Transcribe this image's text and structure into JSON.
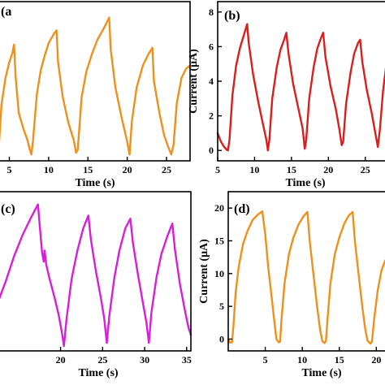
{
  "chart_data": [
    {
      "panel": "(a",
      "type": "line",
      "color": "#f0901c",
      "xlabel": "Time (s)",
      "ylabel": "",
      "xlim": [
        3.5,
        28
      ],
      "ylim": [
        0,
        1
      ],
      "xticks": [
        5,
        10,
        15,
        20,
        25
      ],
      "yticks": [],
      "points": [
        [
          3.5,
          0.05
        ],
        [
          3.7,
          0.12
        ],
        [
          4.0,
          0.35
        ],
        [
          4.5,
          0.52
        ],
        [
          5.0,
          0.62
        ],
        [
          5.4,
          0.68
        ],
        [
          5.6,
          0.73
        ],
        [
          5.8,
          0.53
        ],
        [
          6.2,
          0.3
        ],
        [
          6.8,
          0.2
        ],
        [
          7.3,
          0.13
        ],
        [
          7.6,
          0.07
        ],
        [
          7.8,
          0.04
        ],
        [
          8.0,
          0.12
        ],
        [
          8.5,
          0.42
        ],
        [
          9.0,
          0.57
        ],
        [
          9.5,
          0.66
        ],
        [
          10.0,
          0.74
        ],
        [
          10.7,
          0.8
        ],
        [
          11.0,
          0.82
        ],
        [
          11.2,
          0.62
        ],
        [
          11.8,
          0.4
        ],
        [
          12.5,
          0.24
        ],
        [
          13.2,
          0.13
        ],
        [
          13.5,
          0.05
        ],
        [
          13.7,
          0.07
        ],
        [
          14.2,
          0.4
        ],
        [
          14.8,
          0.56
        ],
        [
          15.5,
          0.67
        ],
        [
          16.2,
          0.76
        ],
        [
          17.0,
          0.83
        ],
        [
          17.7,
          0.9
        ],
        [
          17.9,
          0.7
        ],
        [
          18.5,
          0.46
        ],
        [
          19.3,
          0.27
        ],
        [
          20.0,
          0.12
        ],
        [
          20.3,
          0.04
        ],
        [
          20.6,
          0.25
        ],
        [
          21.2,
          0.46
        ],
        [
          22.0,
          0.6
        ],
        [
          22.7,
          0.67
        ],
        [
          23.2,
          0.71
        ],
        [
          23.4,
          0.5
        ],
        [
          24.1,
          0.3
        ],
        [
          24.7,
          0.16
        ],
        [
          25.2,
          0.09
        ],
        [
          25.6,
          0.04
        ],
        [
          25.9,
          0.1
        ],
        [
          26.3,
          0.36
        ],
        [
          26.9,
          0.52
        ],
        [
          27.5,
          0.58
        ],
        [
          28.0,
          0.6
        ]
      ]
    },
    {
      "panel": "(b)",
      "type": "line",
      "color": "#d91e1e",
      "xlabel": "Time (s)",
      "ylabel": "Current (μA)",
      "xlim": [
        5,
        28
      ],
      "ylim": [
        -0.6,
        8.6
      ],
      "xticks": [
        5,
        10,
        15,
        20,
        25
      ],
      "yticks": [
        0,
        2,
        4,
        6,
        8
      ],
      "points": [
        [
          5.0,
          1.0
        ],
        [
          5.4,
          0.55
        ],
        [
          5.8,
          0.25
        ],
        [
          6.2,
          0.05
        ],
        [
          6.4,
          0.0
        ],
        [
          6.6,
          0.6
        ],
        [
          7.0,
          3.2
        ],
        [
          7.5,
          4.9
        ],
        [
          8.0,
          5.9
        ],
        [
          8.5,
          6.6
        ],
        [
          9.0,
          7.3
        ],
        [
          9.2,
          6.2
        ],
        [
          9.8,
          4.4
        ],
        [
          10.5,
          2.8
        ],
        [
          11.2,
          1.4
        ],
        [
          11.6,
          0.6
        ],
        [
          11.8,
          0.0
        ],
        [
          12.0,
          0.6
        ],
        [
          12.4,
          3.0
        ],
        [
          13.0,
          4.8
        ],
        [
          13.5,
          5.8
        ],
        [
          14.0,
          6.4
        ],
        [
          14.3,
          6.8
        ],
        [
          14.6,
          5.6
        ],
        [
          15.2,
          3.9
        ],
        [
          15.9,
          2.5
        ],
        [
          16.5,
          1.3
        ],
        [
          16.8,
          0.1
        ],
        [
          17.0,
          0.6
        ],
        [
          17.4,
          3.0
        ],
        [
          18.0,
          4.8
        ],
        [
          18.5,
          5.9
        ],
        [
          19.0,
          6.5
        ],
        [
          19.3,
          6.8
        ],
        [
          19.6,
          5.4
        ],
        [
          20.3,
          3.7
        ],
        [
          21.0,
          2.4
        ],
        [
          21.5,
          1.2
        ],
        [
          21.8,
          0.3
        ],
        [
          22.0,
          0.5
        ],
        [
          22.4,
          2.7
        ],
        [
          23.0,
          4.5
        ],
        [
          23.5,
          5.6
        ],
        [
          24.0,
          6.2
        ],
        [
          24.3,
          6.4
        ],
        [
          24.6,
          5.1
        ],
        [
          25.2,
          3.5
        ],
        [
          25.9,
          2.1
        ],
        [
          26.4,
          0.9
        ],
        [
          26.7,
          0.2
        ],
        [
          27.0,
          1.3
        ],
        [
          27.4,
          3.4
        ],
        [
          27.8,
          4.8
        ],
        [
          28.0,
          5.5
        ]
      ]
    },
    {
      "panel": "(c)",
      "type": "line",
      "color": "#d81ed8",
      "xlabel": "Time (s)",
      "ylabel": "",
      "xlim": [
        12.5,
        35.5
      ],
      "ylim": [
        0,
        1
      ],
      "xticks": [
        20,
        25,
        30,
        35
      ],
      "yticks": [],
      "points": [
        [
          12.5,
          0.3
        ],
        [
          13.5,
          0.44
        ],
        [
          14.5,
          0.6
        ],
        [
          15.5,
          0.73
        ],
        [
          16.5,
          0.84
        ],
        [
          17.3,
          0.92
        ],
        [
          17.5,
          0.8
        ],
        [
          17.8,
          0.62
        ],
        [
          18.0,
          0.56
        ],
        [
          18.1,
          0.63
        ],
        [
          18.3,
          0.54
        ],
        [
          18.7,
          0.45
        ],
        [
          19.3,
          0.33
        ],
        [
          19.8,
          0.22
        ],
        [
          20.2,
          0.1
        ],
        [
          20.4,
          0.03
        ],
        [
          20.7,
          0.2
        ],
        [
          21.3,
          0.45
        ],
        [
          22.0,
          0.63
        ],
        [
          22.7,
          0.77
        ],
        [
          23.3,
          0.85
        ],
        [
          23.6,
          0.7
        ],
        [
          24.2,
          0.5
        ],
        [
          24.8,
          0.33
        ],
        [
          25.2,
          0.2
        ],
        [
          25.5,
          0.05
        ],
        [
          25.8,
          0.22
        ],
        [
          26.4,
          0.46
        ],
        [
          27.0,
          0.63
        ],
        [
          27.7,
          0.77
        ],
        [
          28.3,
          0.83
        ],
        [
          28.6,
          0.68
        ],
        [
          29.2,
          0.48
        ],
        [
          29.8,
          0.3
        ],
        [
          30.2,
          0.18
        ],
        [
          30.5,
          0.05
        ],
        [
          30.8,
          0.24
        ],
        [
          31.4,
          0.46
        ],
        [
          32.0,
          0.61
        ],
        [
          32.7,
          0.72
        ],
        [
          33.3,
          0.8
        ],
        [
          33.6,
          0.64
        ],
        [
          34.2,
          0.42
        ],
        [
          34.8,
          0.25
        ],
        [
          35.2,
          0.15
        ],
        [
          35.5,
          0.1
        ]
      ]
    },
    {
      "panel": "(d)",
      "type": "line",
      "color": "#f0901c",
      "xlabel": "Time (s)",
      "ylabel": "Current (μA)",
      "xlim": [
        0,
        21.5
      ],
      "ylim": [
        -1.8,
        22.5
      ],
      "xticks": [
        5,
        10,
        15,
        20
      ],
      "yticks": [
        0,
        5,
        10,
        15,
        20
      ],
      "points": [
        [
          0.0,
          0.0
        ],
        [
          0.2,
          -0.5
        ],
        [
          0.5,
          -0.5
        ],
        [
          0.7,
          2.0
        ],
        [
          1.0,
          7.0
        ],
        [
          1.4,
          11.0
        ],
        [
          2.0,
          14.5
        ],
        [
          2.6,
          16.5
        ],
        [
          3.3,
          18.2
        ],
        [
          4.0,
          19.0
        ],
        [
          4.6,
          19.5
        ],
        [
          5.0,
          16.0
        ],
        [
          5.4,
          11.0
        ],
        [
          5.9,
          6.0
        ],
        [
          6.3,
          2.0
        ],
        [
          6.5,
          0.0
        ],
        [
          6.8,
          -0.5
        ],
        [
          7.0,
          -0.4
        ],
        [
          7.2,
          3.0
        ],
        [
          7.6,
          8.5
        ],
        [
          8.2,
          13.0
        ],
        [
          8.8,
          15.5
        ],
        [
          9.5,
          17.5
        ],
        [
          10.2,
          18.8
        ],
        [
          10.7,
          19.4
        ],
        [
          11.0,
          15.0
        ],
        [
          11.5,
          10.0
        ],
        [
          12.0,
          5.0
        ],
        [
          12.4,
          1.5
        ],
        [
          12.7,
          -0.3
        ],
        [
          13.0,
          -0.6
        ],
        [
          13.2,
          -0.3
        ],
        [
          13.4,
          3.0
        ],
        [
          13.8,
          8.5
        ],
        [
          14.4,
          13.0
        ],
        [
          15.0,
          15.5
        ],
        [
          15.7,
          17.7
        ],
        [
          16.3,
          18.9
        ],
        [
          16.8,
          19.4
        ],
        [
          17.1,
          15.0
        ],
        [
          17.6,
          10.0
        ],
        [
          18.1,
          5.0
        ],
        [
          18.5,
          1.5
        ],
        [
          18.8,
          -0.2
        ],
        [
          19.2,
          -0.7
        ],
        [
          19.4,
          -0.4
        ],
        [
          19.7,
          3.0
        ],
        [
          20.2,
          7.5
        ],
        [
          20.7,
          10.5
        ],
        [
          21.2,
          12.0
        ],
        [
          21.5,
          12.5
        ]
      ]
    }
  ]
}
